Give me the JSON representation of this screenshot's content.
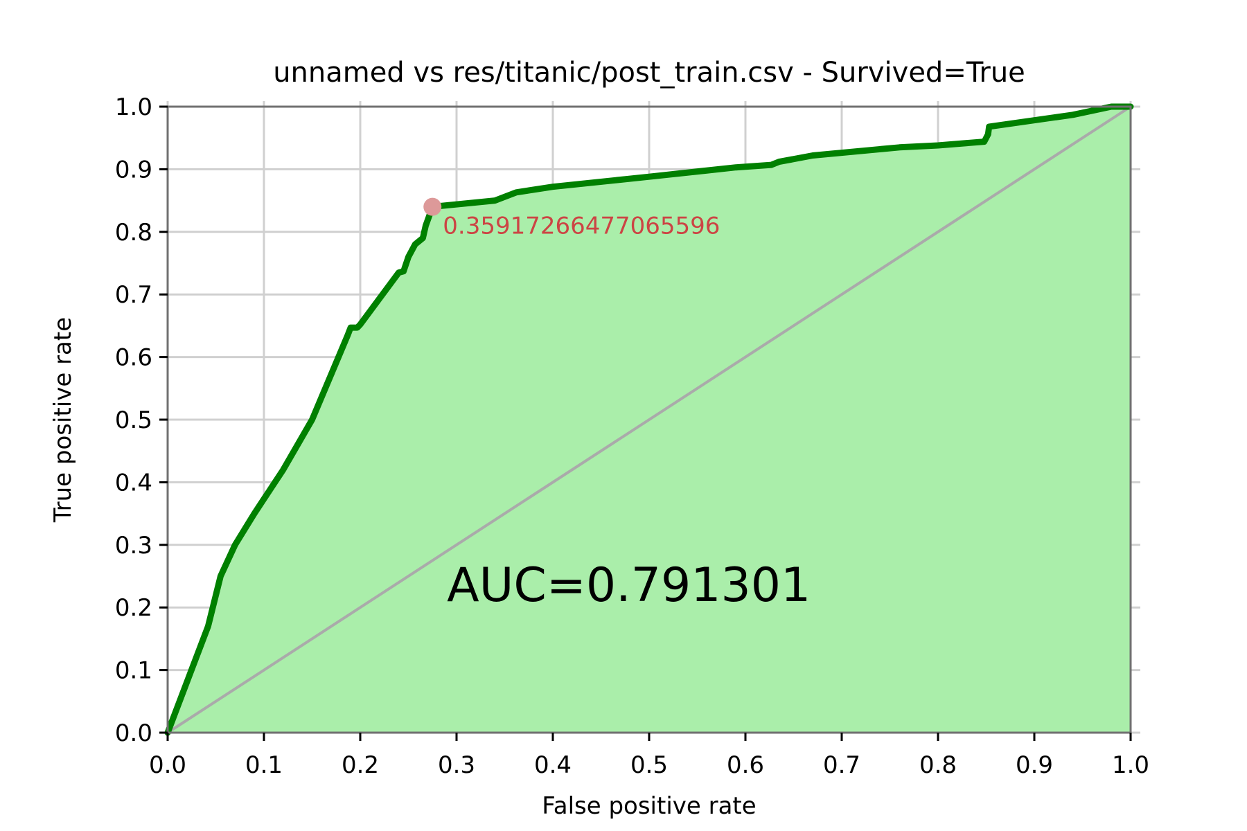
{
  "chart_data": {
    "type": "line",
    "title": "unnamed vs res/titanic/post_train.csv - Survived=True",
    "xlabel": "False positive rate",
    "ylabel": "True positive rate",
    "xlim": [
      0,
      1
    ],
    "ylim": [
      0,
      1
    ],
    "grid": true,
    "x_ticks": [
      "0.0",
      "0.1",
      "0.2",
      "0.3",
      "0.4",
      "0.5",
      "0.6",
      "0.7",
      "0.8",
      "0.9",
      "1.0"
    ],
    "y_ticks": [
      "0.0",
      "0.1",
      "0.2",
      "0.3",
      "0.4",
      "0.5",
      "0.6",
      "0.7",
      "0.8",
      "0.9",
      "1.0"
    ],
    "x_tick_values": [
      0,
      0.1,
      0.2,
      0.3,
      0.4,
      0.5,
      0.6,
      0.7,
      0.8,
      0.9,
      1.0
    ],
    "y_tick_values": [
      0,
      0.1,
      0.2,
      0.3,
      0.4,
      0.5,
      0.6,
      0.7,
      0.8,
      0.9,
      1.0
    ],
    "series": [
      {
        "color": "#008000",
        "fill_color": "#aaeeaa",
        "x": [
          0.0,
          0.042,
          0.055,
          0.07,
          0.09,
          0.12,
          0.15,
          0.187,
          0.19,
          0.197,
          0.2,
          0.24,
          0.245,
          0.25,
          0.257,
          0.265,
          0.268,
          0.275,
          0.34,
          0.362,
          0.4,
          0.5,
          0.59,
          0.627,
          0.635,
          0.67,
          0.76,
          0.8,
          0.848,
          0.852,
          0.853,
          0.94,
          0.98,
          1.0
        ],
        "y": [
          0.0,
          0.17,
          0.25,
          0.3,
          0.35,
          0.42,
          0.5,
          0.635,
          0.647,
          0.647,
          0.652,
          0.735,
          0.737,
          0.76,
          0.78,
          0.79,
          0.81,
          0.84,
          0.85,
          0.863,
          0.872,
          0.888,
          0.903,
          0.907,
          0.912,
          0.922,
          0.935,
          0.938,
          0.944,
          0.956,
          0.968,
          0.987,
          1.0,
          1.0
        ]
      }
    ],
    "reference_line": {
      "x": [
        0,
        1
      ],
      "y": [
        0,
        1
      ],
      "color": "#aaaaaa"
    },
    "marker": {
      "x": 0.275,
      "y": 0.84,
      "label": "0.35917266477065596",
      "color": "#dd9999",
      "label_color": "#cc4444"
    },
    "annotation": {
      "text": "AUC=0.791301",
      "x": 0.29,
      "y": 0.21
    }
  }
}
